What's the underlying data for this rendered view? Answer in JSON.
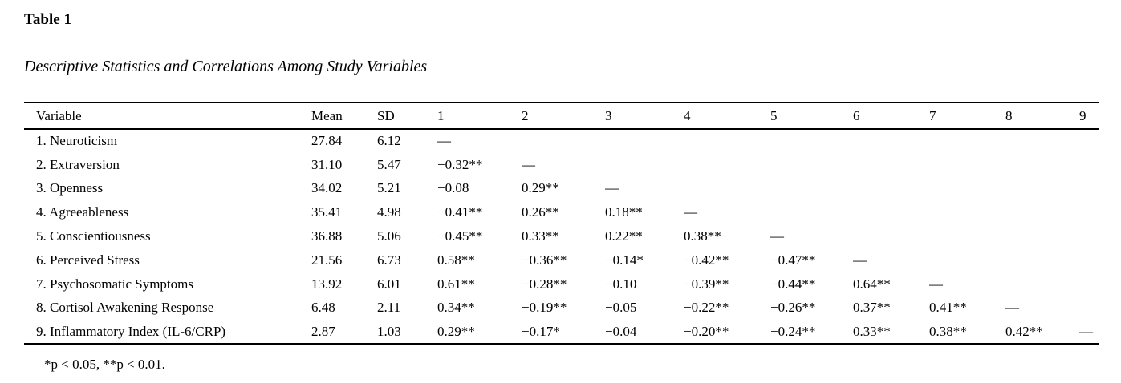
{
  "page": {
    "table_label": "Table 1",
    "table_caption": "Descriptive Statistics and Correlations Among Study Variables",
    "footnote": "*p < 0.05, **p < 0.01."
  },
  "table": {
    "columns": [
      "Variable",
      "Mean",
      "SD",
      "1",
      "2",
      "3",
      "4",
      "5",
      "6",
      "7",
      "8",
      "9"
    ],
    "rows": [
      [
        "1. Neuroticism",
        "27.84",
        "6.12",
        "—",
        "",
        "",
        "",
        "",
        "",
        "",
        "",
        ""
      ],
      [
        "2. Extraversion",
        "31.10",
        "5.47",
        "−0.32**",
        "—",
        "",
        "",
        "",
        "",
        "",
        "",
        ""
      ],
      [
        "3. Openness",
        "34.02",
        "5.21",
        "−0.08",
        "0.29**",
        "—",
        "",
        "",
        "",
        "",
        "",
        ""
      ],
      [
        "4. Agreeableness",
        "35.41",
        "4.98",
        "−0.41**",
        "0.26**",
        "0.18**",
        "—",
        "",
        "",
        "",
        "",
        ""
      ],
      [
        "5. Conscientiousness",
        "36.88",
        "5.06",
        "−0.45**",
        "0.33**",
        "0.22**",
        "0.38**",
        "—",
        "",
        "",
        "",
        ""
      ],
      [
        "6. Perceived Stress",
        "21.56",
        "6.73",
        "0.58**",
        "−0.36**",
        "−0.14*",
        "−0.42**",
        "−0.47**",
        "—",
        "",
        "",
        ""
      ],
      [
        "7. Psychosomatic Symptoms",
        "13.92",
        "6.01",
        "0.61**",
        "−0.28**",
        "−0.10",
        "−0.39**",
        "−0.44**",
        "0.64**",
        "—",
        "",
        ""
      ],
      [
        "8. Cortisol Awakening Response",
        "6.48",
        "2.11",
        "0.34**",
        "−0.19**",
        "−0.05",
        "−0.22**",
        "−0.26**",
        "0.37**",
        "0.41**",
        "—",
        ""
      ],
      [
        "9. Inflammatory Index (IL-6/CRP)",
        "2.87",
        "1.03",
        "0.29**",
        "−0.17*",
        "−0.04",
        "−0.20**",
        "−0.24**",
        "0.33**",
        "0.38**",
        "0.42**",
        "—"
      ]
    ]
  }
}
